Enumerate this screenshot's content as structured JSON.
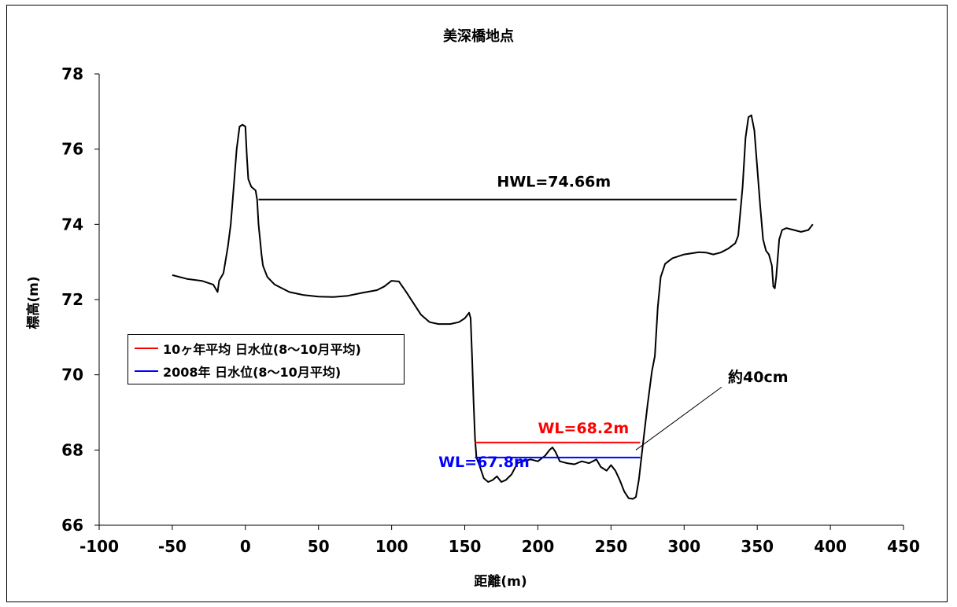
{
  "chart_data": {
    "type": "line",
    "title": "美深橋地点",
    "xlabel": "距離(m)",
    "ylabel": "標高(m)",
    "xlim": [
      -100,
      450
    ],
    "ylim": [
      66,
      78
    ],
    "x_ticks": [
      "-100",
      "-50",
      "0",
      "50",
      "100",
      "150",
      "200",
      "250",
      "300",
      "350",
      "400",
      "450"
    ],
    "y_ticks": [
      "66",
      "68",
      "70",
      "72",
      "74",
      "76",
      "78"
    ],
    "grid": false,
    "legend_position": "left",
    "series": [
      {
        "color": "#000000",
        "points": [
          [
            -50,
            72.65
          ],
          [
            -40,
            72.55
          ],
          [
            -30,
            72.5
          ],
          [
            -22,
            72.4
          ],
          [
            -19,
            72.2
          ],
          [
            -18,
            72.5
          ],
          [
            -15,
            72.7
          ],
          [
            -12,
            73.4
          ],
          [
            -10,
            74.0
          ],
          [
            -8,
            75.0
          ],
          [
            -6,
            76.0
          ],
          [
            -4,
            76.6
          ],
          [
            -2,
            76.65
          ],
          [
            0,
            76.6
          ],
          [
            1,
            75.8
          ],
          [
            2,
            75.2
          ],
          [
            4,
            75.0
          ],
          [
            7,
            74.9
          ],
          [
            8,
            74.66
          ],
          [
            9,
            74.0
          ],
          [
            11,
            73.2
          ],
          [
            12,
            72.9
          ],
          [
            15,
            72.6
          ],
          [
            20,
            72.4
          ],
          [
            30,
            72.2
          ],
          [
            40,
            72.12
          ],
          [
            50,
            72.08
          ],
          [
            60,
            72.07
          ],
          [
            70,
            72.1
          ],
          [
            80,
            72.18
          ],
          [
            90,
            72.25
          ],
          [
            95,
            72.35
          ],
          [
            100,
            72.5
          ],
          [
            105,
            72.48
          ],
          [
            110,
            72.2
          ],
          [
            115,
            71.9
          ],
          [
            120,
            71.6
          ],
          [
            126,
            71.4
          ],
          [
            132,
            71.35
          ],
          [
            140,
            71.35
          ],
          [
            146,
            71.4
          ],
          [
            150,
            71.5
          ],
          [
            153,
            71.65
          ],
          [
            154,
            71.5
          ],
          [
            155,
            70.5
          ],
          [
            156,
            69.3
          ],
          [
            157,
            68.3
          ],
          [
            158,
            67.8
          ],
          [
            160,
            67.6
          ],
          [
            163,
            67.25
          ],
          [
            166,
            67.15
          ],
          [
            169,
            67.2
          ],
          [
            172,
            67.3
          ],
          [
            175,
            67.15
          ],
          [
            178,
            67.2
          ],
          [
            182,
            67.35
          ],
          [
            186,
            67.65
          ],
          [
            190,
            67.7
          ],
          [
            195,
            67.75
          ],
          [
            200,
            67.7
          ],
          [
            205,
            67.85
          ],
          [
            208,
            68.0
          ],
          [
            210,
            68.07
          ],
          [
            212,
            67.95
          ],
          [
            215,
            67.7
          ],
          [
            220,
            67.65
          ],
          [
            225,
            67.62
          ],
          [
            230,
            67.7
          ],
          [
            235,
            67.65
          ],
          [
            240,
            67.75
          ],
          [
            243,
            67.55
          ],
          [
            247,
            67.45
          ],
          [
            250,
            67.6
          ],
          [
            253,
            67.45
          ],
          [
            256,
            67.2
          ],
          [
            259,
            66.9
          ],
          [
            262,
            66.72
          ],
          [
            265,
            66.7
          ],
          [
            267,
            66.75
          ],
          [
            269,
            67.2
          ],
          [
            272,
            68.2
          ],
          [
            275,
            69.2
          ],
          [
            278,
            70.1
          ],
          [
            280,
            70.5
          ],
          [
            282,
            71.8
          ],
          [
            284,
            72.6
          ],
          [
            287,
            72.95
          ],
          [
            292,
            73.1
          ],
          [
            300,
            73.2
          ],
          [
            310,
            73.26
          ],
          [
            315,
            73.25
          ],
          [
            320,
            73.2
          ],
          [
            325,
            73.25
          ],
          [
            330,
            73.35
          ],
          [
            335,
            73.5
          ],
          [
            337,
            73.7
          ],
          [
            340,
            75.0
          ],
          [
            342,
            76.3
          ],
          [
            344,
            76.85
          ],
          [
            346,
            76.9
          ],
          [
            348,
            76.5
          ],
          [
            350,
            75.5
          ],
          [
            352,
            74.5
          ],
          [
            354,
            73.6
          ],
          [
            356,
            73.3
          ],
          [
            358,
            73.2
          ],
          [
            360,
            72.9
          ],
          [
            361,
            72.35
          ],
          [
            362,
            72.3
          ],
          [
            363,
            72.6
          ],
          [
            365,
            73.6
          ],
          [
            367,
            73.85
          ],
          [
            370,
            73.9
          ],
          [
            375,
            73.85
          ],
          [
            380,
            73.8
          ],
          [
            385,
            73.85
          ],
          [
            388,
            74.0
          ]
        ]
      },
      {
        "name": "HWL=74.66m",
        "color": "#000000",
        "x": [
          9,
          336
        ],
        "y": 74.66
      },
      {
        "name": "10ヶ年平均 日水位(8〜10月平均)",
        "color": "#ff0000",
        "x": [
          157,
          270
        ],
        "y": 68.2
      },
      {
        "name": "2008年 日水位(8〜10月平均)",
        "color": "#0000ff",
        "x": [
          157,
          270
        ],
        "y": 67.8
      }
    ],
    "annotations": [
      {
        "text": "HWL=74.66m",
        "x": 172,
        "y": 75.0,
        "color": "#000000"
      },
      {
        "text": "WL=68.2m",
        "x": 200,
        "y": 68.45,
        "color": "#ff0000"
      },
      {
        "text": "WL=67.8m",
        "x": 132,
        "y": 67.55,
        "color": "#0000ff"
      },
      {
        "text": "約40cm",
        "x": 330,
        "y": 69.8,
        "color": "#000000",
        "leader_to": [
          267,
          68.0
        ]
      }
    ]
  },
  "legend": [
    {
      "label": "10ヶ年平均 日水位(8〜10月平均)",
      "color": "#ff0000"
    },
    {
      "label": "2008年 日水位(8〜10月平均)",
      "color": "#0000ff"
    }
  ]
}
